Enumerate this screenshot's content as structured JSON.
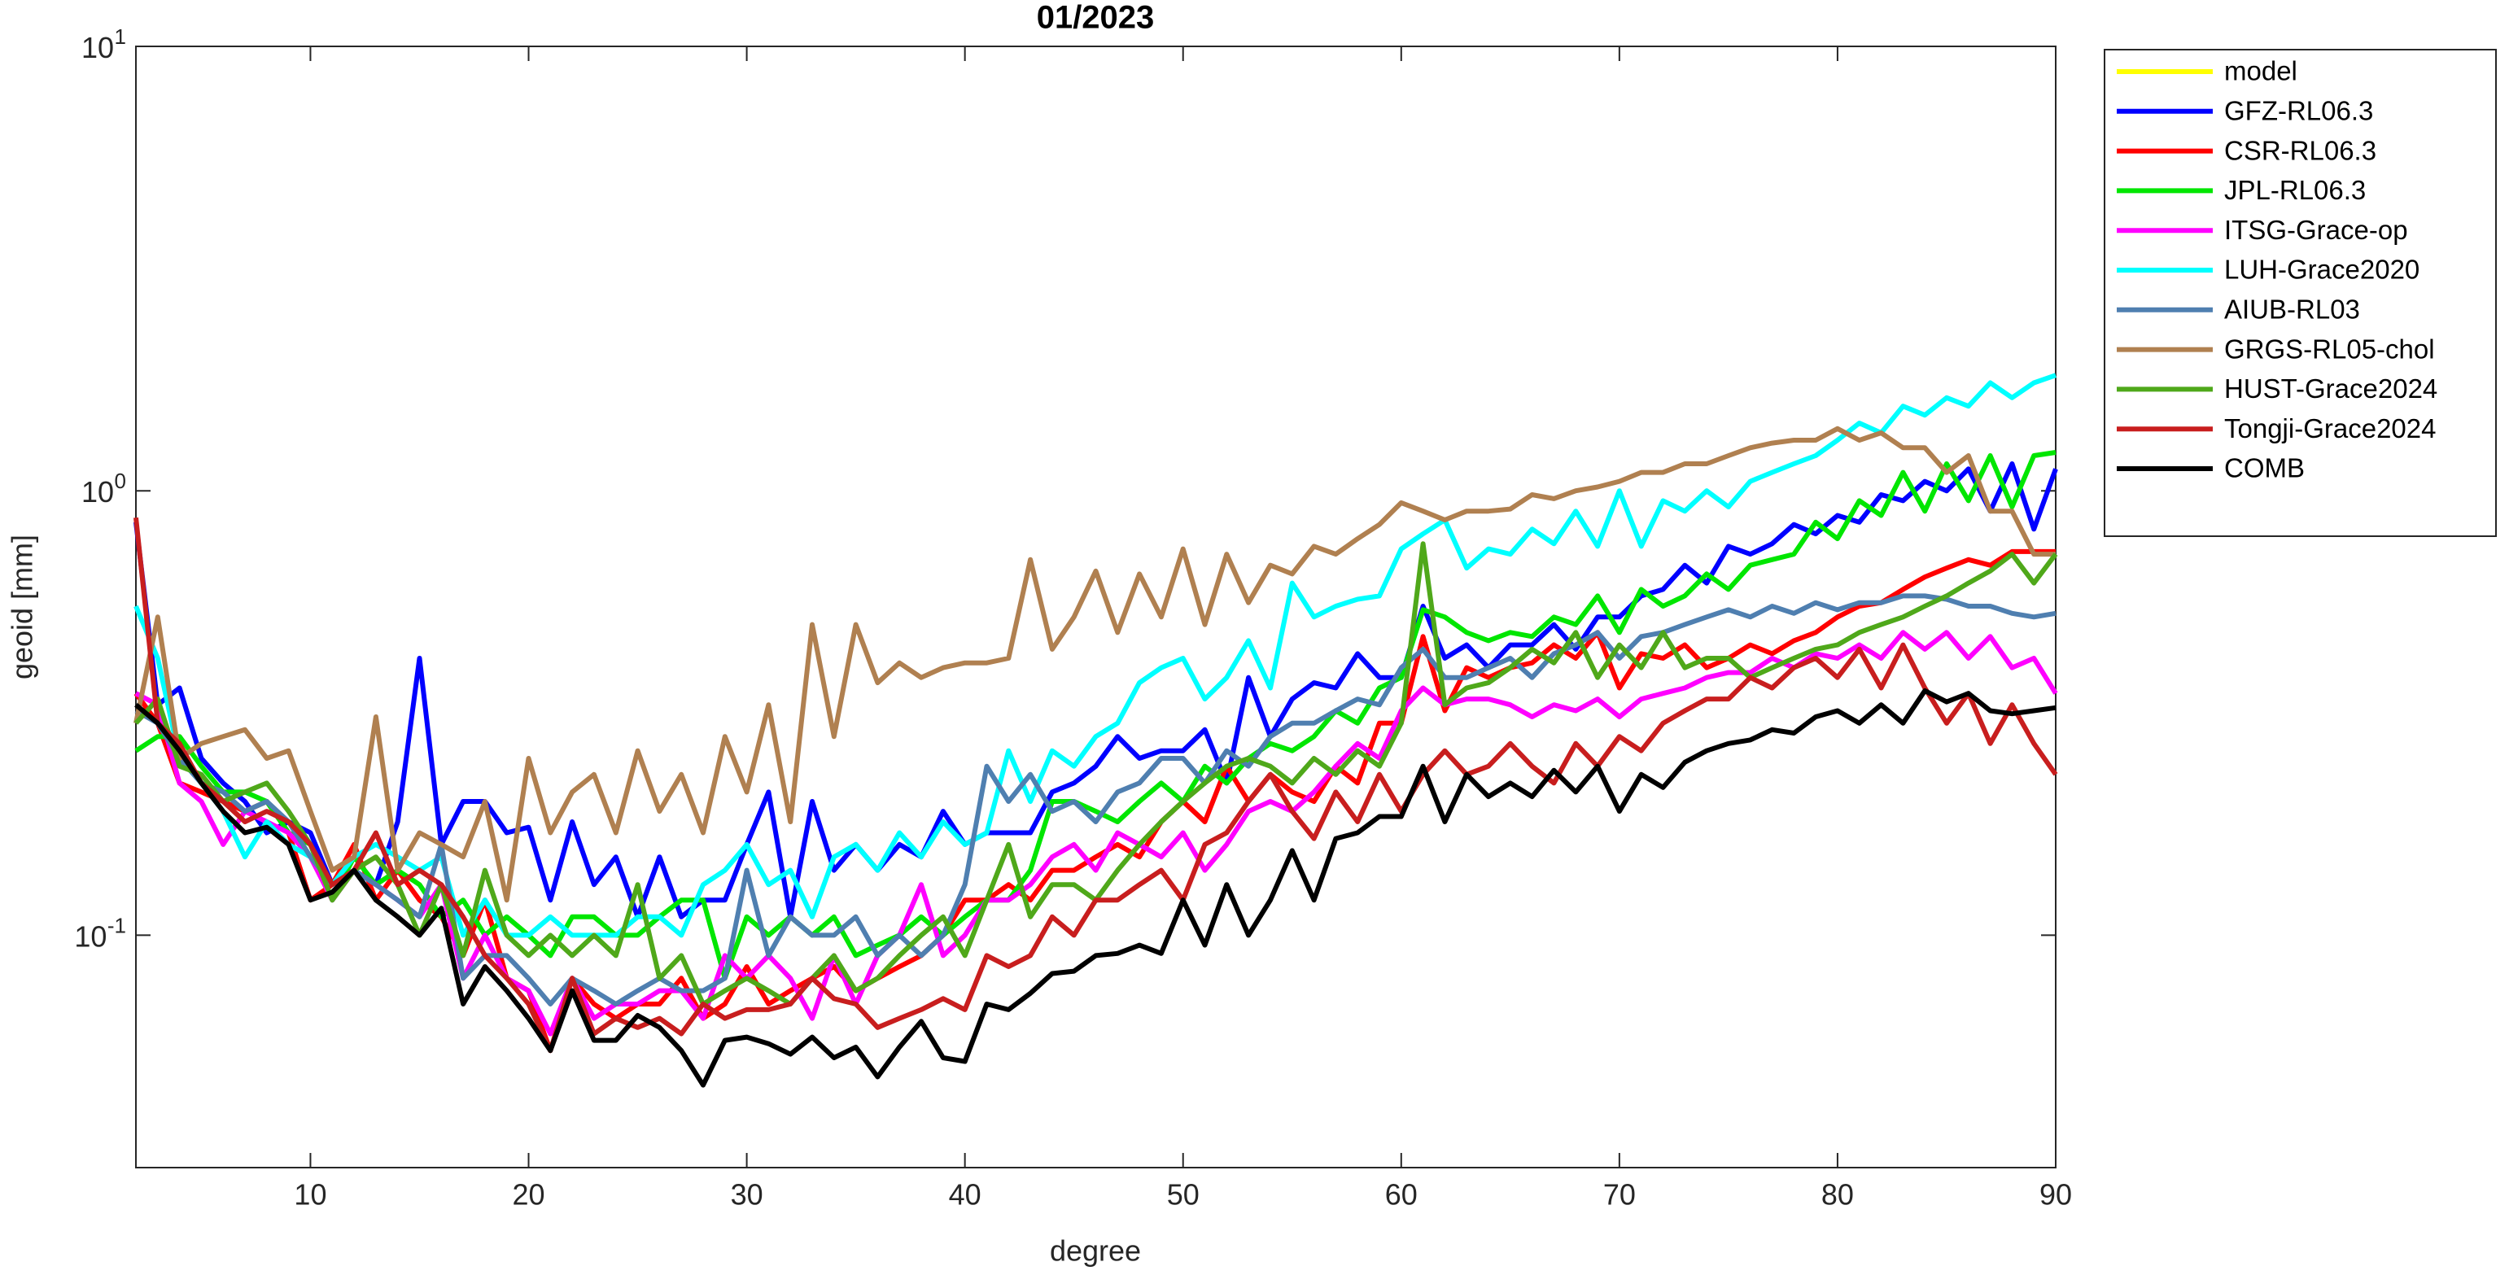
{
  "chart_data": {
    "type": "line",
    "title": "01/2023",
    "xlabel": "degree",
    "ylabel": "geoid [mm]",
    "yscale": "log",
    "xlim": [
      2,
      90
    ],
    "ylim": [
      0.03,
      10
    ],
    "xticks": [
      10,
      20,
      30,
      40,
      50,
      60,
      70,
      80,
      90
    ],
    "yticks": [
      {
        "value": 0.1,
        "label": "10^-1"
      },
      {
        "value": 1,
        "label": "10^0"
      },
      {
        "value": 10,
        "label": "10^1"
      }
    ],
    "legend": "outside-northeast",
    "x": [
      2,
      3,
      4,
      5,
      6,
      7,
      8,
      9,
      10,
      11,
      12,
      13,
      14,
      15,
      16,
      17,
      18,
      19,
      20,
      21,
      22,
      23,
      24,
      25,
      26,
      27,
      28,
      29,
      30,
      31,
      32,
      33,
      34,
      35,
      36,
      37,
      38,
      39,
      40,
      41,
      42,
      43,
      44,
      45,
      46,
      47,
      48,
      49,
      50,
      51,
      52,
      53,
      54,
      55,
      56,
      57,
      58,
      59,
      60,
      61,
      62,
      63,
      64,
      65,
      66,
      67,
      68,
      69,
      70,
      71,
      72,
      73,
      74,
      75,
      76,
      77,
      78,
      79,
      80,
      81,
      82,
      83,
      84,
      85,
      86,
      87,
      88,
      89,
      90
    ],
    "series": [
      {
        "name": "model",
        "color": "#ffff00",
        "values": [
          null,
          null,
          null,
          null,
          null,
          null,
          null,
          null,
          null,
          null,
          null,
          null,
          null,
          null,
          null,
          null,
          null,
          null,
          null,
          null,
          null,
          null,
          null,
          null,
          null,
          null,
          null,
          null,
          null,
          null,
          null,
          null,
          null,
          null,
          null,
          null,
          null,
          null,
          null,
          null,
          null,
          null,
          null,
          null,
          null,
          null,
          null,
          null,
          null,
          null,
          null,
          null,
          null,
          null,
          null,
          null,
          null,
          null,
          null,
          null,
          null,
          null,
          null,
          null,
          null,
          null,
          null,
          null,
          null,
          null,
          null,
          null,
          null,
          null,
          null,
          null,
          null,
          null,
          null,
          null,
          null,
          null,
          null,
          null,
          null,
          null,
          null,
          null,
          null
        ]
      },
      {
        "name": "GFZ-RL06.3",
        "color": "#0000ff",
        "values": [
          0.85,
          0.33,
          0.36,
          0.25,
          0.22,
          0.2,
          0.17,
          0.18,
          0.17,
          0.13,
          0.14,
          0.13,
          0.18,
          0.42,
          0.16,
          0.2,
          0.2,
          0.17,
          0.175,
          0.12,
          0.18,
          0.13,
          0.15,
          0.11,
          0.15,
          0.11,
          0.12,
          0.12,
          0.16,
          0.21,
          0.11,
          0.2,
          0.14,
          0.16,
          0.14,
          0.16,
          0.15,
          0.19,
          0.16,
          0.17,
          0.17,
          0.17,
          0.21,
          0.22,
          0.24,
          0.28,
          0.25,
          0.26,
          0.26,
          0.29,
          0.22,
          0.38,
          0.28,
          0.34,
          0.37,
          0.36,
          0.43,
          0.38,
          0.38,
          0.55,
          0.42,
          0.45,
          0.4,
          0.45,
          0.45,
          0.5,
          0.44,
          0.52,
          0.52,
          0.58,
          0.6,
          0.68,
          0.62,
          0.75,
          0.72,
          0.76,
          0.84,
          0.8,
          0.88,
          0.85,
          0.98,
          0.95,
          1.05,
          1.0,
          1.12,
          0.9,
          1.15,
          0.82,
          1.12
        ]
      },
      {
        "name": "CSR-RL06.3",
        "color": "#ff0000",
        "values": [
          0.35,
          0.3,
          0.22,
          0.21,
          0.2,
          0.19,
          0.2,
          0.17,
          0.12,
          0.13,
          0.16,
          0.12,
          0.14,
          0.12,
          0.11,
          0.09,
          0.12,
          0.08,
          0.075,
          0.055,
          0.08,
          0.07,
          0.065,
          0.07,
          0.07,
          0.08,
          0.065,
          0.07,
          0.085,
          0.07,
          0.075,
          0.08,
          0.085,
          0.075,
          0.08,
          0.085,
          0.09,
          0.1,
          0.12,
          0.12,
          0.13,
          0.12,
          0.14,
          0.14,
          0.15,
          0.16,
          0.15,
          0.18,
          0.2,
          0.18,
          0.24,
          0.2,
          0.23,
          0.21,
          0.2,
          0.24,
          0.22,
          0.3,
          0.3,
          0.47,
          0.32,
          0.4,
          0.38,
          0.4,
          0.41,
          0.45,
          0.42,
          0.48,
          0.36,
          0.43,
          0.42,
          0.45,
          0.4,
          0.42,
          0.45,
          0.43,
          0.46,
          0.48,
          0.52,
          0.55,
          0.56,
          0.6,
          0.64,
          0.67,
          0.7,
          0.68,
          0.73,
          0.73,
          0.73
        ]
      },
      {
        "name": "JPL-RL06.3",
        "color": "#00e600",
        "values": [
          0.26,
          0.28,
          0.28,
          0.24,
          0.21,
          0.21,
          0.2,
          0.17,
          0.16,
          0.12,
          0.15,
          0.13,
          0.14,
          0.13,
          0.11,
          0.12,
          0.1,
          0.11,
          0.1,
          0.09,
          0.11,
          0.11,
          0.1,
          0.1,
          0.11,
          0.12,
          0.12,
          0.08,
          0.11,
          0.1,
          0.11,
          0.1,
          0.11,
          0.09,
          0.095,
          0.1,
          0.11,
          0.1,
          0.11,
          0.12,
          0.12,
          0.14,
          0.2,
          0.2,
          0.19,
          0.18,
          0.2,
          0.22,
          0.2,
          0.24,
          0.22,
          0.25,
          0.27,
          0.26,
          0.28,
          0.32,
          0.3,
          0.36,
          0.38,
          0.54,
          0.52,
          0.48,
          0.46,
          0.48,
          0.47,
          0.52,
          0.5,
          0.58,
          0.48,
          0.6,
          0.55,
          0.58,
          0.65,
          0.6,
          0.68,
          0.7,
          0.72,
          0.85,
          0.78,
          0.95,
          0.88,
          1.1,
          0.9,
          1.15,
          0.95,
          1.2,
          0.92,
          1.2,
          1.22
        ]
      },
      {
        "name": "ITSG-Grace-op",
        "color": "#ff00ff",
        "values": [
          0.35,
          0.33,
          0.22,
          0.2,
          0.16,
          0.19,
          0.18,
          0.17,
          0.15,
          0.12,
          0.14,
          0.13,
          0.12,
          0.11,
          0.13,
          0.08,
          0.1,
          0.08,
          0.075,
          0.06,
          0.08,
          0.065,
          0.07,
          0.07,
          0.075,
          0.075,
          0.065,
          0.09,
          0.08,
          0.09,
          0.08,
          0.065,
          0.09,
          0.07,
          0.09,
          0.1,
          0.13,
          0.09,
          0.1,
          0.12,
          0.12,
          0.13,
          0.15,
          0.16,
          0.14,
          0.17,
          0.16,
          0.15,
          0.17,
          0.14,
          0.16,
          0.19,
          0.2,
          0.19,
          0.21,
          0.24,
          0.27,
          0.25,
          0.32,
          0.36,
          0.33,
          0.34,
          0.34,
          0.33,
          0.31,
          0.33,
          0.32,
          0.34,
          0.31,
          0.34,
          0.35,
          0.36,
          0.38,
          0.39,
          0.39,
          0.42,
          0.4,
          0.43,
          0.42,
          0.45,
          0.42,
          0.48,
          0.44,
          0.48,
          0.42,
          0.47,
          0.4,
          0.42,
          0.35
        ]
      },
      {
        "name": "LUH-Grace2020",
        "color": "#00ffff",
        "values": [
          0.55,
          0.42,
          0.25,
          0.22,
          0.19,
          0.15,
          0.18,
          0.16,
          0.15,
          0.13,
          0.15,
          0.16,
          0.15,
          0.14,
          0.15,
          0.1,
          0.12,
          0.1,
          0.1,
          0.11,
          0.1,
          0.1,
          0.1,
          0.11,
          0.11,
          0.1,
          0.13,
          0.14,
          0.16,
          0.13,
          0.14,
          0.11,
          0.15,
          0.16,
          0.14,
          0.17,
          0.15,
          0.18,
          0.16,
          0.17,
          0.26,
          0.2,
          0.26,
          0.24,
          0.28,
          0.3,
          0.37,
          0.4,
          0.42,
          0.34,
          0.38,
          0.46,
          0.36,
          0.62,
          0.52,
          0.55,
          0.57,
          0.58,
          0.74,
          0.8,
          0.86,
          0.67,
          0.74,
          0.72,
          0.82,
          0.76,
          0.9,
          0.75,
          1.0,
          0.75,
          0.95,
          0.9,
          1.0,
          0.92,
          1.05,
          1.1,
          1.15,
          1.2,
          1.3,
          1.42,
          1.35,
          1.55,
          1.48,
          1.62,
          1.55,
          1.75,
          1.62,
          1.75,
          1.82
        ]
      },
      {
        "name": "AIUB-RL03",
        "color": "#4f7fb0",
        "values": [
          0.32,
          0.3,
          0.25,
          0.22,
          0.21,
          0.19,
          0.2,
          0.18,
          0.15,
          0.13,
          0.14,
          0.13,
          0.12,
          0.11,
          0.16,
          0.08,
          0.09,
          0.09,
          0.08,
          0.07,
          0.08,
          0.075,
          0.07,
          0.075,
          0.08,
          0.075,
          0.075,
          0.08,
          0.14,
          0.09,
          0.11,
          0.1,
          0.1,
          0.11,
          0.09,
          0.1,
          0.09,
          0.1,
          0.13,
          0.24,
          0.2,
          0.23,
          0.19,
          0.2,
          0.18,
          0.21,
          0.22,
          0.25,
          0.25,
          0.22,
          0.26,
          0.24,
          0.28,
          0.3,
          0.3,
          0.32,
          0.34,
          0.33,
          0.4,
          0.44,
          0.38,
          0.38,
          0.4,
          0.42,
          0.38,
          0.43,
          0.45,
          0.48,
          0.42,
          0.47,
          0.48,
          0.5,
          0.52,
          0.54,
          0.52,
          0.55,
          0.53,
          0.56,
          0.54,
          0.56,
          0.56,
          0.58,
          0.58,
          0.57,
          0.55,
          0.55,
          0.53,
          0.52,
          0.53
        ]
      },
      {
        "name": "GRGS-RL05-chol",
        "color": "#b08050",
        "values": [
          0.3,
          0.52,
          0.25,
          0.27,
          0.28,
          0.29,
          0.25,
          0.26,
          0.19,
          0.14,
          0.15,
          0.31,
          0.14,
          0.17,
          0.16,
          0.15,
          0.2,
          0.12,
          0.25,
          0.17,
          0.21,
          0.23,
          0.17,
          0.26,
          0.19,
          0.23,
          0.17,
          0.28,
          0.21,
          0.33,
          0.18,
          0.5,
          0.28,
          0.5,
          0.37,
          0.41,
          0.38,
          0.4,
          0.41,
          0.41,
          0.42,
          0.7,
          0.44,
          0.52,
          0.66,
          0.48,
          0.65,
          0.52,
          0.74,
          0.5,
          0.72,
          0.56,
          0.68,
          0.65,
          0.75,
          0.72,
          0.78,
          0.84,
          0.94,
          0.9,
          0.86,
          0.9,
          0.9,
          0.91,
          0.98,
          0.96,
          1.0,
          1.02,
          1.05,
          1.1,
          1.1,
          1.15,
          1.15,
          1.2,
          1.25,
          1.28,
          1.3,
          1.3,
          1.38,
          1.3,
          1.35,
          1.25,
          1.25,
          1.1,
          1.2,
          0.9,
          0.9,
          0.72,
          0.72
        ]
      },
      {
        "name": "HUST-Grace2024",
        "color": "#4fa81a",
        "values": [
          0.3,
          0.34,
          0.24,
          0.23,
          0.2,
          0.21,
          0.22,
          0.19,
          0.16,
          0.12,
          0.14,
          0.15,
          0.13,
          0.1,
          0.13,
          0.09,
          0.14,
          0.1,
          0.09,
          0.1,
          0.09,
          0.1,
          0.09,
          0.13,
          0.08,
          0.09,
          0.07,
          0.075,
          0.08,
          0.075,
          0.07,
          0.08,
          0.09,
          0.075,
          0.08,
          0.09,
          0.1,
          0.11,
          0.09,
          0.12,
          0.16,
          0.11,
          0.13,
          0.13,
          0.12,
          0.14,
          0.16,
          0.18,
          0.2,
          0.22,
          0.24,
          0.25,
          0.24,
          0.22,
          0.25,
          0.23,
          0.26,
          0.24,
          0.3,
          0.76,
          0.33,
          0.36,
          0.37,
          0.4,
          0.44,
          0.41,
          0.48,
          0.38,
          0.45,
          0.4,
          0.48,
          0.4,
          0.42,
          0.42,
          0.38,
          0.4,
          0.42,
          0.44,
          0.45,
          0.48,
          0.5,
          0.52,
          0.55,
          0.58,
          0.62,
          0.66,
          0.72,
          0.62,
          0.72
        ]
      },
      {
        "name": "Tongji-Grace2024",
        "color": "#c81e1e",
        "values": [
          0.87,
          0.3,
          0.27,
          0.22,
          0.2,
          0.18,
          0.19,
          0.18,
          0.16,
          0.13,
          0.14,
          0.17,
          0.13,
          0.14,
          0.13,
          0.11,
          0.09,
          0.08,
          0.07,
          0.055,
          0.08,
          0.06,
          0.065,
          0.062,
          0.065,
          0.06,
          0.07,
          0.065,
          0.068,
          0.068,
          0.07,
          0.08,
          0.072,
          0.07,
          0.062,
          0.065,
          0.068,
          0.072,
          0.068,
          0.09,
          0.085,
          0.09,
          0.11,
          0.1,
          0.12,
          0.12,
          0.13,
          0.14,
          0.12,
          0.16,
          0.17,
          0.2,
          0.23,
          0.19,
          0.165,
          0.21,
          0.18,
          0.23,
          0.19,
          0.23,
          0.26,
          0.23,
          0.24,
          0.27,
          0.24,
          0.22,
          0.27,
          0.24,
          0.28,
          0.26,
          0.3,
          0.32,
          0.34,
          0.34,
          0.38,
          0.36,
          0.4,
          0.42,
          0.38,
          0.44,
          0.36,
          0.45,
          0.36,
          0.3,
          0.35,
          0.27,
          0.33,
          0.27,
          0.23
        ]
      },
      {
        "name": "COMB",
        "color": "#000000",
        "values": [
          0.33,
          0.3,
          0.26,
          0.22,
          0.19,
          0.17,
          0.175,
          0.16,
          0.12,
          0.125,
          0.14,
          0.12,
          0.11,
          0.1,
          0.115,
          0.07,
          0.085,
          0.075,
          0.065,
          0.055,
          0.075,
          0.058,
          0.058,
          0.066,
          0.062,
          0.055,
          0.046,
          0.058,
          0.059,
          0.057,
          0.054,
          0.059,
          0.053,
          0.056,
          0.048,
          0.056,
          0.064,
          0.053,
          0.052,
          0.07,
          0.068,
          0.074,
          0.082,
          0.083,
          0.09,
          0.091,
          0.095,
          0.091,
          0.12,
          0.095,
          0.13,
          0.1,
          0.12,
          0.155,
          0.12,
          0.165,
          0.17,
          0.185,
          0.185,
          0.24,
          0.18,
          0.23,
          0.205,
          0.22,
          0.205,
          0.235,
          0.21,
          0.24,
          0.19,
          0.23,
          0.215,
          0.245,
          0.26,
          0.27,
          0.275,
          0.29,
          0.285,
          0.31,
          0.32,
          0.3,
          0.33,
          0.3,
          0.355,
          0.335,
          0.35,
          0.32,
          0.315,
          0.32,
          0.325
        ]
      }
    ]
  }
}
